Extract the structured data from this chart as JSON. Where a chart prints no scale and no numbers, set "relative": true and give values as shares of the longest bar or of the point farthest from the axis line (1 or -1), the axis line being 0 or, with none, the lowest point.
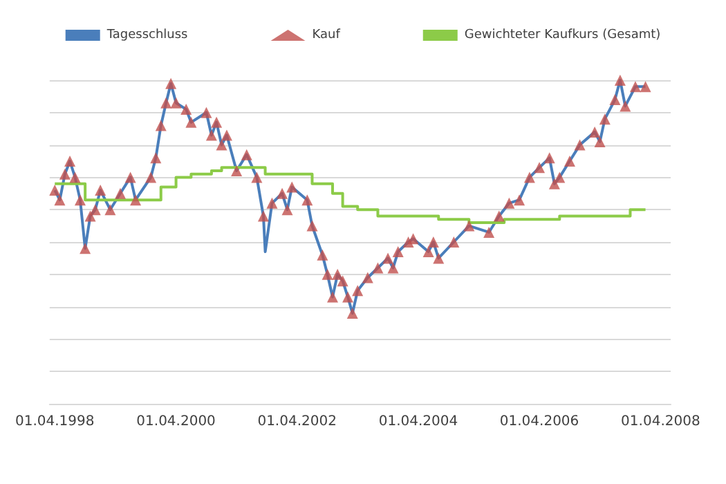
{
  "chart_data": {
    "type": "line",
    "relative": true,
    "grid": "y",
    "legend": "top",
    "xlim": [
      "1998-03-01",
      "2008-06-01"
    ],
    "xticks": [
      {
        "value": "1998-04-01",
        "label": "01.04.1998"
      },
      {
        "value": "2000-04-01",
        "label": "01.04.2000"
      },
      {
        "value": "2002-04-01",
        "label": "01.04.2002"
      },
      {
        "value": "2004-04-01",
        "label": "01.04.2004"
      },
      {
        "value": "2006-04-01",
        "label": "01.04.2006"
      },
      {
        "value": "2008-04-01",
        "label": "01.04.2008"
      }
    ],
    "series": [
      {
        "name": "Tagesschluss",
        "type": "line",
        "marker": "none",
        "color": "#4a7ebb",
        "x": [
          "1998-04",
          "1998-05",
          "1998-06",
          "1998-07",
          "1998-08",
          "1998-09",
          "1998-10",
          "1998-11",
          "1998-12",
          "1999-01",
          "1999-03",
          "1999-05",
          "1999-07",
          "1999-08",
          "1999-11",
          "1999-12",
          "2000-01",
          "2000-02",
          "2000-03",
          "2000-04",
          "2000-06",
          "2000-07",
          "2000-10",
          "2000-11",
          "2000-12",
          "2001-01",
          "2001-02",
          "2001-04",
          "2001-06",
          "2001-08",
          "2001-09-10",
          "2001-09-21",
          "2001-11",
          "2002-01",
          "2002-02",
          "2002-03",
          "2002-06",
          "2002-07",
          "2002-09",
          "2002-10",
          "2002-11",
          "2002-12",
          "2003-01",
          "2003-02",
          "2003-03",
          "2003-04",
          "2003-06",
          "2003-08",
          "2003-10",
          "2003-11",
          "2003-12",
          "2004-02",
          "2004-03",
          "2004-06",
          "2004-07",
          "2004-08",
          "2004-11",
          "2005-02",
          "2005-06",
          "2005-08",
          "2005-10",
          "2005-12",
          "2006-02",
          "2006-04",
          "2006-06",
          "2006-07",
          "2006-08",
          "2006-10",
          "2006-12",
          "2007-03",
          "2007-04",
          "2007-05",
          "2007-07",
          "2007-08",
          "2007-09",
          "2007-11",
          "2008-01"
        ],
        "values": [
          0.66,
          0.63,
          0.71,
          0.75,
          0.7,
          0.63,
          0.48,
          0.58,
          0.6,
          0.66,
          0.6,
          0.65,
          0.7,
          0.63,
          0.7,
          0.76,
          0.86,
          0.93,
          0.99,
          0.93,
          0.91,
          0.87,
          0.9,
          0.83,
          0.87,
          0.8,
          0.83,
          0.72,
          0.77,
          0.7,
          0.58,
          0.47,
          0.62,
          0.65,
          0.6,
          0.67,
          0.63,
          0.55,
          0.46,
          0.4,
          0.33,
          0.4,
          0.38,
          0.33,
          0.28,
          0.35,
          0.39,
          0.42,
          0.45,
          0.42,
          0.47,
          0.5,
          0.51,
          0.47,
          0.5,
          0.45,
          0.5,
          0.55,
          0.53,
          0.58,
          0.62,
          0.63,
          0.7,
          0.73,
          0.76,
          0.68,
          0.7,
          0.75,
          0.8,
          0.84,
          0.81,
          0.88,
          0.94,
          1,
          0.92,
          0.98,
          0.98
        ]
      },
      {
        "name": "Kauf",
        "type": "scatter",
        "marker": "triangle",
        "color": "#c0504d",
        "x": [
          "1998-04",
          "1998-05",
          "1998-06",
          "1998-07",
          "1998-08",
          "1998-09",
          "1998-10",
          "1998-11",
          "1998-12",
          "1999-01",
          "1999-03",
          "1999-05",
          "1999-07",
          "1999-08",
          "1999-11",
          "1999-12",
          "2000-01",
          "2000-02",
          "2000-03",
          "2000-04",
          "2000-06",
          "2000-07",
          "2000-10",
          "2000-11",
          "2000-12",
          "2001-01",
          "2001-02",
          "2001-04",
          "2001-06",
          "2001-08",
          "2001-09-10",
          "2001-11",
          "2002-01",
          "2002-02",
          "2002-03",
          "2002-06",
          "2002-07",
          "2002-09",
          "2002-10",
          "2002-11",
          "2002-12",
          "2003-01",
          "2003-02",
          "2003-03",
          "2003-04",
          "2003-06",
          "2003-08",
          "2003-10",
          "2003-11",
          "2003-12",
          "2004-02",
          "2004-03",
          "2004-06",
          "2004-07",
          "2004-08",
          "2004-11",
          "2005-02",
          "2005-06",
          "2005-08",
          "2005-10",
          "2005-12",
          "2006-02",
          "2006-04",
          "2006-06",
          "2006-07",
          "2006-08",
          "2006-10",
          "2006-12",
          "2007-03",
          "2007-04",
          "2007-05",
          "2007-07",
          "2007-08",
          "2007-09",
          "2007-11",
          "2008-01"
        ],
        "values": [
          0.66,
          0.63,
          0.71,
          0.75,
          0.7,
          0.63,
          0.48,
          0.58,
          0.6,
          0.66,
          0.6,
          0.65,
          0.7,
          0.63,
          0.7,
          0.76,
          0.86,
          0.93,
          0.99,
          0.93,
          0.91,
          0.87,
          0.9,
          0.83,
          0.87,
          0.8,
          0.83,
          0.72,
          0.77,
          0.7,
          0.58,
          0.62,
          0.65,
          0.6,
          0.67,
          0.63,
          0.55,
          0.46,
          0.4,
          0.33,
          0.4,
          0.38,
          0.33,
          0.28,
          0.35,
          0.39,
          0.42,
          0.45,
          0.42,
          0.47,
          0.5,
          0.51,
          0.47,
          0.5,
          0.45,
          0.5,
          0.55,
          0.53,
          0.58,
          0.62,
          0.63,
          0.7,
          0.73,
          0.76,
          0.68,
          0.7,
          0.75,
          0.8,
          0.84,
          0.81,
          0.88,
          0.94,
          1,
          0.92,
          0.98,
          0.98
        ]
      },
      {
        "name": "Gewichteter Kaufkurs (Gesamt)",
        "type": "step",
        "marker": "none",
        "color": "#8ccb48",
        "x": [
          "1998-04",
          "1998-10",
          "1999-10",
          "2000-01",
          "2000-04",
          "2000-07",
          "2000-11",
          "2001-01",
          "2001-09-21",
          "2002-04",
          "2002-07",
          "2002-11",
          "2003-01",
          "2003-04",
          "2003-08",
          "2004-02",
          "2004-08",
          "2005-02",
          "2005-09",
          "2006-02",
          "2006-08",
          "2007-02",
          "2007-10",
          "2008-01"
        ],
        "values": [
          0.68,
          0.63,
          0.63,
          0.67,
          0.7,
          0.71,
          0.72,
          0.73,
          0.71,
          0.71,
          0.68,
          0.65,
          0.61,
          0.6,
          0.58,
          0.58,
          0.57,
          0.56,
          0.57,
          0.57,
          0.58,
          0.58,
          0.6,
          0.6
        ]
      }
    ]
  }
}
